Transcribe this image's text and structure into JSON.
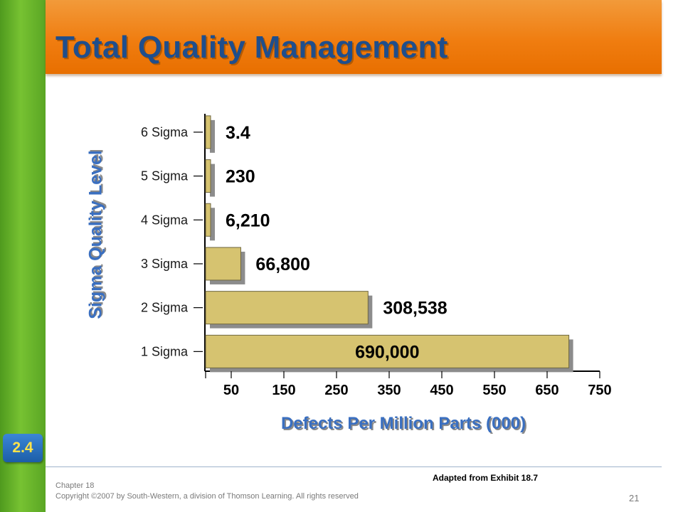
{
  "slide": {
    "title": "Total Quality Management",
    "chapter_badge": "2.4",
    "attribution": "Adapted from Exhibit 18.7",
    "footer_chapter": "Chapter 18",
    "footer_copyright": "Copyright ©2007 by South-Western, a division of Thomson Learning.  All rights reserved",
    "page_number": "21"
  },
  "colors": {
    "title_bar": "#f07d10",
    "left_bar": "#6bb52c",
    "title_text": "#1f4e8c",
    "axis_label": "#3a6fc0",
    "bar_fill": "#d6c370",
    "bar_shadow": "#8c8c8c",
    "badge": "#2a72c0",
    "badge_text": "#ffe24a"
  },
  "chart_data": {
    "type": "bar",
    "orientation": "horizontal",
    "categories": [
      "1 Sigma",
      "2 Sigma",
      "3 Sigma",
      "4 Sigma",
      "5 Sigma",
      "6 Sigma"
    ],
    "values": [
      690000,
      308538,
      66800,
      6210,
      230,
      3.4
    ],
    "data_labels": [
      "690,000",
      "308,538",
      "66,800",
      "6,210",
      "230",
      "3.4"
    ],
    "xlabel": "Defects Per Million Parts (000)",
    "ylabel": "Sigma Quality Level",
    "x_ticks": [
      50,
      150,
      250,
      350,
      450,
      550,
      650,
      750
    ],
    "x_tick_labels": [
      "50",
      "150",
      "250",
      "350",
      "450",
      "550",
      "650",
      "750"
    ],
    "xlim": [
      0,
      750
    ],
    "grid": false,
    "legend": "none"
  }
}
